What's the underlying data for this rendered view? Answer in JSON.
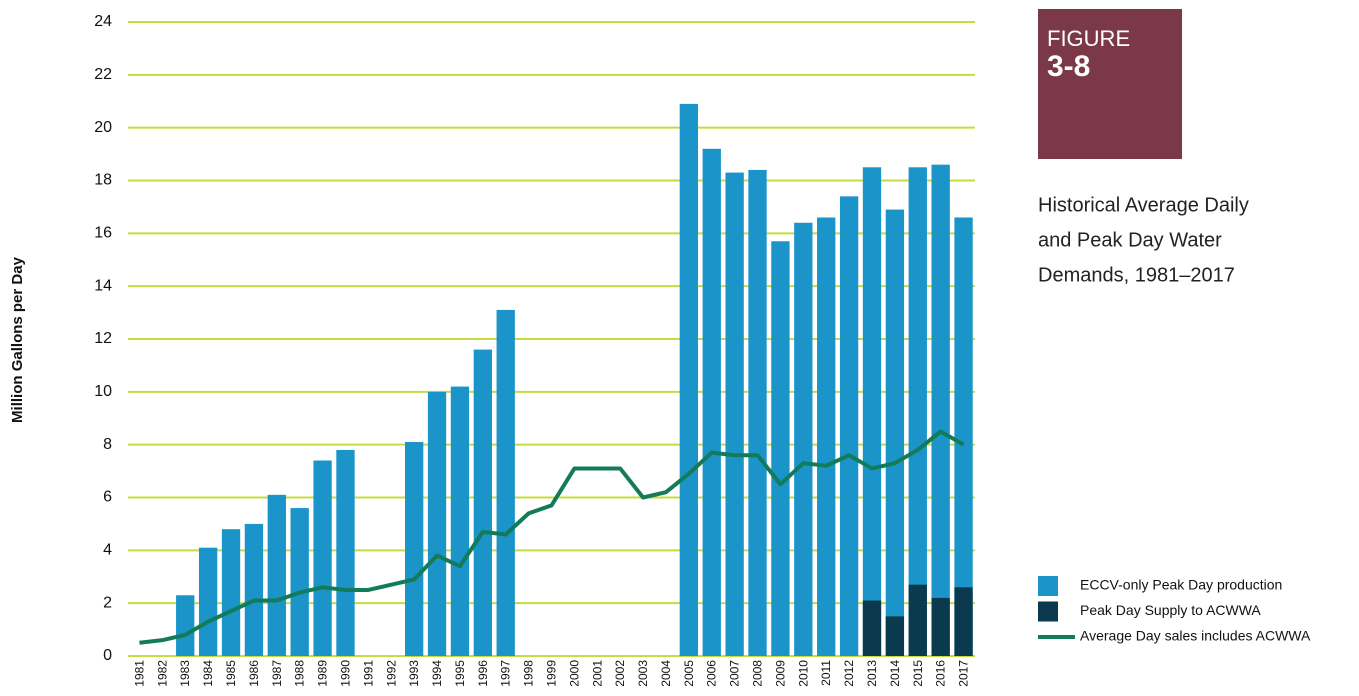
{
  "chart_data": {
    "type": "bar",
    "figure_label": "FIGURE",
    "figure_number": "3-8",
    "title": [
      "Historical Average Daily",
      "and Peak Day Water",
      "Demands, 1981–2017"
    ],
    "y_label": "Million Gallons per Day",
    "categories": [
      "1981",
      "1982",
      "1983",
      "1984",
      "1985",
      "1986",
      "1987",
      "1988",
      "1989",
      "1990",
      "1991",
      "1992",
      "1993",
      "1994",
      "1995",
      "1996",
      "1997",
      "1998",
      "1999",
      "2000",
      "2001",
      "2002",
      "2003",
      "2004",
      "2005",
      "2006",
      "2007",
      "2008",
      "2009",
      "2010",
      "2011",
      "2012",
      "2013",
      "2014",
      "2015",
      "2016",
      "2017"
    ],
    "series": [
      {
        "name": "ECCV-only Peak Day production",
        "type": "bar",
        "color": "#1a94c9",
        "values": [
          null,
          null,
          2.3,
          4.1,
          4.8,
          5.0,
          6.1,
          5.6,
          7.4,
          7.8,
          null,
          null,
          8.1,
          10.0,
          10.2,
          11.6,
          13.1,
          null,
          null,
          null,
          null,
          null,
          null,
          null,
          20.9,
          19.2,
          18.3,
          18.4,
          15.7,
          16.4,
          16.6,
          17.4,
          18.5,
          16.9,
          18.5,
          18.6,
          16.6
        ]
      },
      {
        "name": "Peak Day Supply to ACWWA",
        "type": "bar",
        "color": "#0b3a4f",
        "values": [
          null,
          null,
          null,
          null,
          null,
          null,
          null,
          null,
          null,
          null,
          null,
          null,
          null,
          null,
          null,
          null,
          null,
          null,
          null,
          null,
          null,
          null,
          null,
          null,
          null,
          null,
          null,
          null,
          null,
          null,
          null,
          null,
          2.1,
          1.5,
          2.7,
          2.2,
          2.6
        ]
      },
      {
        "name": "Average Day sales includes ACWWA",
        "type": "line",
        "color": "#137b5a",
        "values": [
          0.5,
          0.6,
          0.8,
          1.3,
          1.7,
          2.1,
          2.1,
          2.4,
          2.6,
          2.5,
          2.5,
          2.7,
          2.9,
          3.8,
          3.4,
          4.7,
          4.6,
          5.4,
          5.7,
          7.1,
          7.1,
          7.1,
          6.0,
          6.2,
          6.9,
          7.7,
          7.6,
          7.6,
          6.5,
          7.3,
          7.2,
          7.6,
          7.1,
          7.3,
          7.8,
          8.5,
          8.0
        ]
      }
    ],
    "ylim": [
      0,
      24
    ],
    "yticks": [
      0,
      2,
      4,
      6,
      8,
      10,
      12,
      14,
      16,
      18,
      20,
      22,
      24
    ],
    "grid": true,
    "grid_color": "#c9da3f",
    "figure_color": "#7b3947"
  }
}
